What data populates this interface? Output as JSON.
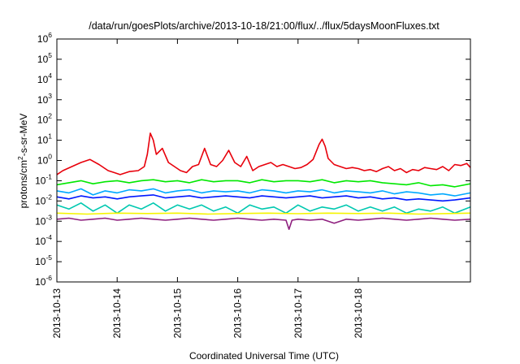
{
  "chart_data": {
    "type": "line",
    "title": "/data/run/goesPlots/archive/2013-10-18/21:00/flux/../flux/5daysMoonFluxes.txt",
    "xlabel": "Coordinated Universal Time (UTC)",
    "ylabel": {
      "base": "protons/cm",
      "sup": "2",
      "rest": "-s-sr-MeV"
    },
    "yscale": "log",
    "ylim": [
      -6,
      6
    ],
    "y_ticks": [
      {
        "base": "10",
        "exp": "6",
        "value": 6
      },
      {
        "base": "10",
        "exp": "5",
        "value": 5
      },
      {
        "base": "10",
        "exp": "4",
        "value": 4
      },
      {
        "base": "10",
        "exp": "3",
        "value": 3
      },
      {
        "base": "10",
        "exp": "2",
        "value": 2
      },
      {
        "base": "10",
        "exp": "1",
        "value": 1
      },
      {
        "base": "10",
        "exp": "0",
        "value": 0
      },
      {
        "base": "10",
        "exp": "-1",
        "value": -1
      },
      {
        "base": "10",
        "exp": "-2",
        "value": -2
      },
      {
        "base": "10",
        "exp": "-3",
        "value": -3
      },
      {
        "base": "10",
        "exp": "-4",
        "value": -4
      },
      {
        "base": "10",
        "exp": "-5",
        "value": -5
      },
      {
        "base": "10",
        "exp": "-6",
        "value": -6
      }
    ],
    "xlim": [
      0,
      6.86
    ],
    "x_ticks": [
      {
        "label": "2013-10-13",
        "value": 0
      },
      {
        "label": "2013-10-14",
        "value": 1
      },
      {
        "label": "2013-10-15",
        "value": 2
      },
      {
        "label": "2013-10-16",
        "value": 3
      },
      {
        "label": "2013-10-17",
        "value": 4
      },
      {
        "label": "2013-10-18",
        "value": 5
      }
    ],
    "grid": false,
    "series": [
      {
        "color": "#e8000b",
        "x": [
          0,
          0.1,
          0.25,
          0.4,
          0.55,
          0.7,
          0.85,
          0.95,
          1.05,
          1.2,
          1.35,
          1.45,
          1.5,
          1.55,
          1.6,
          1.65,
          1.75,
          1.85,
          1.95,
          2.05,
          2.15,
          2.25,
          2.35,
          2.45,
          2.55,
          2.65,
          2.75,
          2.85,
          2.95,
          3.05,
          3.15,
          3.25,
          3.35,
          3.45,
          3.55,
          3.65,
          3.75,
          3.85,
          3.95,
          4.05,
          4.15,
          4.25,
          4.35,
          4.4,
          4.45,
          4.5,
          4.6,
          4.7,
          4.8,
          4.9,
          5.0,
          5.1,
          5.2,
          5.3,
          5.4,
          5.5,
          5.6,
          5.7,
          5.8,
          5.9,
          6.0,
          6.1,
          6.2,
          6.3,
          6.4,
          6.5,
          6.6,
          6.7,
          6.8,
          6.86
        ],
        "y": [
          -0.7,
          -0.5,
          -0.3,
          -0.1,
          0.05,
          -0.2,
          -0.5,
          -0.6,
          -0.7,
          -0.55,
          -0.5,
          -0.3,
          0.3,
          1.35,
          1.0,
          0.3,
          0.6,
          -0.1,
          -0.3,
          -0.5,
          -0.6,
          -0.3,
          -0.2,
          0.6,
          -0.2,
          -0.3,
          0.0,
          0.5,
          -0.1,
          -0.3,
          0.2,
          -0.5,
          -0.3,
          -0.2,
          -0.1,
          -0.3,
          -0.2,
          -0.3,
          -0.4,
          -0.35,
          -0.2,
          0.05,
          0.8,
          1.05,
          0.7,
          0.1,
          -0.2,
          -0.3,
          -0.4,
          -0.35,
          -0.4,
          -0.5,
          -0.45,
          -0.55,
          -0.4,
          -0.3,
          -0.5,
          -0.4,
          -0.6,
          -0.45,
          -0.5,
          -0.35,
          -0.4,
          -0.45,
          -0.3,
          -0.5,
          -0.2,
          -0.25,
          -0.15,
          -0.35
        ]
      },
      {
        "color": "#00e800",
        "x": [
          0,
          0.2,
          0.4,
          0.6,
          0.8,
          1.0,
          1.2,
          1.4,
          1.6,
          1.8,
          2.0,
          2.2,
          2.4,
          2.6,
          2.8,
          3.0,
          3.2,
          3.4,
          3.6,
          3.8,
          4.0,
          4.2,
          4.4,
          4.6,
          4.8,
          5.0,
          5.2,
          5.4,
          5.6,
          5.8,
          6.0,
          6.2,
          6.4,
          6.6,
          6.86
        ],
        "y": [
          -1.2,
          -1.1,
          -1.0,
          -1.15,
          -1.05,
          -1.0,
          -1.1,
          -1.0,
          -0.95,
          -1.05,
          -1.0,
          -1.1,
          -0.95,
          -1.05,
          -1.0,
          -1.0,
          -1.1,
          -0.95,
          -1.05,
          -1.0,
          -1.0,
          -1.05,
          -0.95,
          -1.1,
          -1.0,
          -1.05,
          -1.0,
          -1.1,
          -1.15,
          -1.2,
          -1.1,
          -1.25,
          -1.2,
          -1.3,
          -1.15
        ]
      },
      {
        "color": "#00a8ff",
        "x": [
          0,
          0.2,
          0.4,
          0.6,
          0.8,
          1.0,
          1.2,
          1.4,
          1.6,
          1.8,
          2.0,
          2.2,
          2.4,
          2.6,
          2.8,
          3.0,
          3.2,
          3.4,
          3.6,
          3.8,
          4.0,
          4.2,
          4.4,
          4.6,
          4.8,
          5.0,
          5.2,
          5.4,
          5.6,
          5.8,
          6.0,
          6.2,
          6.4,
          6.6,
          6.86
        ],
        "y": [
          -1.5,
          -1.6,
          -1.4,
          -1.7,
          -1.5,
          -1.6,
          -1.45,
          -1.5,
          -1.4,
          -1.6,
          -1.5,
          -1.45,
          -1.6,
          -1.5,
          -1.55,
          -1.5,
          -1.6,
          -1.45,
          -1.5,
          -1.6,
          -1.5,
          -1.55,
          -1.45,
          -1.6,
          -1.5,
          -1.55,
          -1.6,
          -1.5,
          -1.65,
          -1.55,
          -1.6,
          -1.7,
          -1.65,
          -1.75,
          -1.6
        ]
      },
      {
        "color": "#0018ff",
        "x": [
          0,
          0.2,
          0.4,
          0.6,
          0.8,
          1.0,
          1.2,
          1.4,
          1.6,
          1.8,
          2.0,
          2.2,
          2.4,
          2.6,
          2.8,
          3.0,
          3.2,
          3.4,
          3.6,
          3.8,
          4.0,
          4.2,
          4.4,
          4.6,
          4.8,
          5.0,
          5.2,
          5.4,
          5.6,
          5.8,
          6.0,
          6.2,
          6.4,
          6.6,
          6.86
        ],
        "y": [
          -1.8,
          -1.9,
          -1.75,
          -1.85,
          -1.8,
          -1.9,
          -1.8,
          -1.75,
          -1.7,
          -1.85,
          -1.8,
          -1.75,
          -1.85,
          -1.8,
          -1.75,
          -1.8,
          -1.85,
          -1.75,
          -1.8,
          -1.85,
          -1.8,
          -1.75,
          -1.85,
          -1.8,
          -1.75,
          -1.85,
          -1.8,
          -1.9,
          -1.85,
          -1.95,
          -1.9,
          -1.95,
          -2.0,
          -1.95,
          -1.85
        ]
      },
      {
        "color": "#00c8b0",
        "x": [
          0,
          0.2,
          0.4,
          0.6,
          0.8,
          1.0,
          1.2,
          1.4,
          1.6,
          1.8,
          2.0,
          2.2,
          2.4,
          2.6,
          2.8,
          3.0,
          3.2,
          3.4,
          3.6,
          3.8,
          4.0,
          4.2,
          4.4,
          4.6,
          4.8,
          5.0,
          5.2,
          5.4,
          5.6,
          5.8,
          6.0,
          6.2,
          6.4,
          6.6,
          6.86
        ],
        "y": [
          -2.2,
          -2.4,
          -2.1,
          -2.5,
          -2.2,
          -2.6,
          -2.2,
          -2.4,
          -2.1,
          -2.5,
          -2.2,
          -2.4,
          -2.2,
          -2.5,
          -2.3,
          -2.6,
          -2.2,
          -2.4,
          -2.3,
          -2.6,
          -2.2,
          -2.5,
          -2.3,
          -2.4,
          -2.2,
          -2.5,
          -2.3,
          -2.5,
          -2.3,
          -2.6,
          -2.4,
          -2.5,
          -2.3,
          -2.6,
          -2.3
        ]
      },
      {
        "color": "#f5f500",
        "x": [
          0,
          0.5,
          1.0,
          1.5,
          2.0,
          2.5,
          3.0,
          3.5,
          4.0,
          4.5,
          5.0,
          5.5,
          6.0,
          6.5,
          6.86
        ],
        "y": [
          -2.6,
          -2.65,
          -2.6,
          -2.62,
          -2.6,
          -2.65,
          -2.62,
          -2.6,
          -2.63,
          -2.6,
          -2.62,
          -2.6,
          -2.65,
          -2.62,
          -2.6
        ]
      },
      {
        "color": "#8e1f7e",
        "x": [
          0,
          0.2,
          0.4,
          0.6,
          0.8,
          1.0,
          1.2,
          1.4,
          1.6,
          1.8,
          2.0,
          2.2,
          2.4,
          2.6,
          2.8,
          3.0,
          3.2,
          3.4,
          3.6,
          3.8,
          3.85,
          3.9,
          4.0,
          4.2,
          4.4,
          4.6,
          4.8,
          5.0,
          5.2,
          5.4,
          5.6,
          5.8,
          6.0,
          6.2,
          6.4,
          6.6,
          6.86
        ],
        "y": [
          -2.9,
          -2.85,
          -2.95,
          -2.9,
          -2.85,
          -2.95,
          -2.9,
          -2.85,
          -2.9,
          -2.95,
          -2.9,
          -2.85,
          -2.9,
          -2.95,
          -2.9,
          -2.85,
          -2.9,
          -2.95,
          -2.9,
          -2.95,
          -3.4,
          -2.95,
          -2.9,
          -2.95,
          -2.9,
          -3.1,
          -2.9,
          -2.95,
          -2.9,
          -2.85,
          -2.9,
          -2.95,
          -2.9,
          -2.85,
          -2.9,
          -2.95,
          -2.9
        ]
      }
    ]
  }
}
